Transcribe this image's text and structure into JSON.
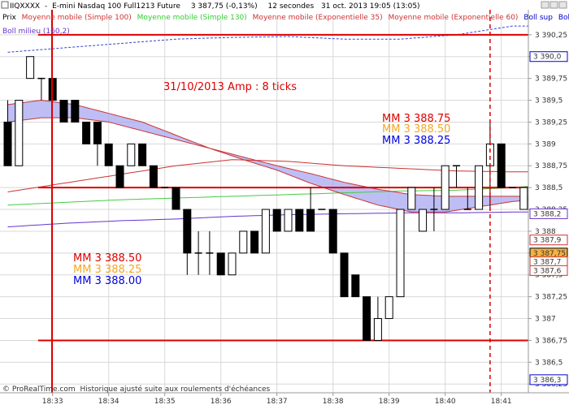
{
  "header": {
    "symbol": "IIQXXXX",
    "title": "E-mini Nasdaq 100 Full1213 Future",
    "price_info": "3 387,75 (-0,13%)",
    "interval": "12 secondes",
    "datetime": "31 oct. 2013 19:05 (13:05)"
  },
  "legend": {
    "items": [
      {
        "label": "Prix",
        "color": "#000000"
      },
      {
        "label": "Moyenne mobile (Simple 100)",
        "color": "#cc3333"
      },
      {
        "label": "Moyenne mobile (Simple 130)",
        "color": "#33cc33"
      },
      {
        "label": "Moyenne mobile (Exponentielle 35)",
        "color": "#cc3333"
      },
      {
        "label": "Moyenne mobile (Exponentielle 60)",
        "color": "#cc3333"
      },
      {
        "label": "Boll sup",
        "color": "#0000cc"
      },
      {
        "label": "Boll inf",
        "color": "#0000cc"
      }
    ],
    "line2": {
      "label": "Boll milieu (160,2)",
      "color": "#6633cc"
    }
  },
  "annotations": {
    "date_amp": "31/10/2013  Amp : 8 ticks",
    "right_mm": [
      "MM 3 388.75",
      "MM 3 388.50",
      "MM 3 388.25"
    ],
    "left_mm": [
      "MM 3 388.50",
      "MM 3 388.25",
      "MM 3 388.00"
    ],
    "mm_colors": [
      "#dd0000",
      "#f5a623",
      "#0000dd"
    ]
  },
  "footer": {
    "copyright": "© ProRealTime.com",
    "note": "Historique ajusté suite aux roulements d'échéances"
  },
  "colors": {
    "candle_up": "#ffffff",
    "candle_down": "#000000",
    "band_fill": "#a8a8f0",
    "red_line": "#dd0000",
    "grid": "#d8d8d8"
  },
  "chart_data": {
    "type": "candlestick",
    "y_ticks": [
      "3 390,25",
      "3 390",
      "3 389,75",
      "3 389,5",
      "3 389,25",
      "3 389",
      "3 388,75",
      "3 388,5",
      "3 388,25",
      "3 388",
      "3 387,75",
      "3 387,5",
      "3 387,25",
      "3 387",
      "3 386,75",
      "3 386,5",
      "3 386,25"
    ],
    "x_ticks": [
      "18:33",
      "18:34",
      "18:35",
      "18:36",
      "18:37",
      "18:38",
      "18:39",
      "18:40",
      "18:41"
    ],
    "ylim": [
      3386.15,
      3390.5
    ],
    "price_labels": [
      {
        "text": "3 390,0",
        "value": 3390.0,
        "color": "#0000cc",
        "bg": "#ffffff"
      },
      {
        "text": "3 388,2",
        "value": 3388.2,
        "color": "#6633cc",
        "bg": "#ffffff"
      },
      {
        "text": "3 387,9",
        "value": 3387.9,
        "color": "#cc3333",
        "bg": "#ffffff"
      },
      {
        "text": "3 387,75",
        "value": 3387.75,
        "color": "#000000",
        "bg": "#f5b041"
      },
      {
        "text": "3 387,7",
        "value": 3387.65,
        "color": "#cc3333",
        "bg": "#ffffff"
      },
      {
        "text": "3 387,6",
        "value": 3387.55,
        "color": "#cc3333",
        "bg": "#ffffff"
      },
      {
        "text": "3 386,3",
        "value": 3386.3,
        "color": "#0000cc",
        "bg": "#ffffff"
      }
    ],
    "hlines": [
      {
        "value": 3390.25,
        "from": 3,
        "to": 47
      },
      {
        "value": 3388.5,
        "from": 3,
        "to": 47
      },
      {
        "value": 3386.75,
        "from": 3,
        "to": 47
      }
    ],
    "vlines": [
      {
        "index": 1,
        "style": "solid"
      },
      {
        "index": 43,
        "style": "dashed"
      }
    ],
    "candles": [
      [
        3389.25,
        3389.5,
        3388.75,
        3388.75
      ],
      [
        3388.75,
        3389.5,
        3388.75,
        3389.5
      ],
      [
        3389.75,
        3390.0,
        3389.75,
        3390.0
      ],
      [
        3389.75,
        3389.75,
        3389.5,
        3389.75
      ],
      [
        3389.75,
        3389.75,
        3389.5,
        3389.5
      ],
      [
        3389.5,
        3389.5,
        3389.25,
        3389.25
      ],
      [
        3389.5,
        3389.5,
        3389.25,
        3389.25
      ],
      [
        3389.25,
        3389.25,
        3389.0,
        3389.0
      ],
      [
        3389.25,
        3389.25,
        3388.75,
        3389.0
      ],
      [
        3389.0,
        3389.0,
        3388.75,
        3388.75
      ],
      [
        3388.75,
        3388.75,
        3388.5,
        3388.5
      ],
      [
        3388.75,
        3389.0,
        3388.75,
        3389.0
      ],
      [
        3389.0,
        3389.0,
        3388.75,
        3388.75
      ],
      [
        3388.75,
        3388.75,
        3388.5,
        3388.5
      ],
      [
        3388.5,
        3388.5,
        3388.5,
        3388.5
      ],
      [
        3388.5,
        3388.5,
        3388.25,
        3388.25
      ],
      [
        3388.25,
        3388.25,
        3387.5,
        3387.75
      ],
      [
        3387.75,
        3388.0,
        3387.5,
        3387.75
      ],
      [
        3387.75,
        3388.0,
        3387.5,
        3387.75
      ],
      [
        3387.75,
        3387.75,
        3387.5,
        3387.5
      ],
      [
        3387.5,
        3387.75,
        3387.5,
        3387.75
      ],
      [
        3387.75,
        3388.0,
        3387.75,
        3388.0
      ],
      [
        3388.0,
        3388.0,
        3387.75,
        3387.75
      ],
      [
        3387.75,
        3388.25,
        3387.75,
        3388.25
      ],
      [
        3388.25,
        3388.25,
        3388.0,
        3388.0
      ],
      [
        3388.0,
        3388.25,
        3388.0,
        3388.25
      ],
      [
        3388.25,
        3388.25,
        3388.0,
        3388.0
      ],
      [
        3388.25,
        3388.5,
        3388.0,
        3388.0
      ],
      [
        3388.25,
        3388.25,
        3388.25,
        3388.25
      ],
      [
        3388.25,
        3388.25,
        3387.75,
        3387.75
      ],
      [
        3387.75,
        3387.75,
        3387.25,
        3387.25
      ],
      [
        3387.5,
        3387.5,
        3387.25,
        3387.25
      ],
      [
        3387.25,
        3387.25,
        3386.75,
        3386.75
      ],
      [
        3386.75,
        3387.25,
        3386.75,
        3387.0
      ],
      [
        3387.0,
        3387.25,
        3387.0,
        3387.25
      ],
      [
        3387.25,
        3388.25,
        3387.25,
        3388.25
      ],
      [
        3388.25,
        3388.5,
        3388.25,
        3388.5
      ],
      [
        3388.0,
        3388.25,
        3388.0,
        3388.25
      ],
      [
        3388.25,
        3388.5,
        3388.0,
        3388.25
      ],
      [
        3388.25,
        3388.75,
        3388.25,
        3388.75
      ],
      [
        3388.75,
        3388.75,
        3388.5,
        3388.75
      ],
      [
        3388.25,
        3388.5,
        3388.25,
        3388.25
      ],
      [
        3388.25,
        3388.75,
        3388.25,
        3388.75
      ],
      [
        3388.75,
        3389.25,
        3388.25,
        3389.0
      ],
      [
        3389.0,
        3389.0,
        3388.5,
        3388.5
      ],
      [
        3388.5,
        3388.5,
        3388.5,
        3388.5
      ],
      [
        3388.25,
        3388.5,
        3388.25,
        3388.5
      ],
      [
        3388.5,
        3388.5,
        3388.25,
        3388.25
      ]
    ],
    "series": [
      {
        "name": "Boll sup",
        "color": "#3344cc",
        "dashed": true,
        "x": [
          0,
          5,
          10,
          15,
          20,
          25,
          30,
          35,
          40,
          45,
          47
        ],
        "values": [
          3390.05,
          3390.1,
          3390.15,
          3390.2,
          3390.22,
          3390.23,
          3390.2,
          3390.2,
          3390.25,
          3390.35,
          3390.35
        ]
      },
      {
        "name": "Boll milieu",
        "color": "#6633cc",
        "x": [
          0,
          5,
          10,
          15,
          20,
          25,
          30,
          35,
          40,
          45,
          47
        ],
        "values": [
          3388.05,
          3388.09,
          3388.12,
          3388.14,
          3388.17,
          3388.19,
          3388.2,
          3388.21,
          3388.21,
          3388.22,
          3388.22
        ]
      },
      {
        "name": "Moyenne mobile (Simple 130)",
        "color": "#44cc44",
        "x": [
          0,
          5,
          10,
          15,
          20,
          25,
          30,
          35,
          40,
          45,
          47
        ],
        "values": [
          3388.3,
          3388.33,
          3388.36,
          3388.38,
          3388.4,
          3388.42,
          3388.44,
          3388.46,
          3388.47,
          3388.5,
          3388.52
        ]
      },
      {
        "name": "Moyenne mobile (Simple 100)",
        "color": "#cc3333",
        "x": [
          0,
          5,
          10,
          15,
          20,
          25,
          30,
          35,
          40,
          45,
          47
        ],
        "values": [
          3388.45,
          3388.55,
          3388.65,
          3388.75,
          3388.82,
          3388.8,
          3388.75,
          3388.72,
          3388.69,
          3388.68,
          3388.68
        ]
      },
      {
        "name": "Moyenne mobile (Exponentielle 35)",
        "color": "#cc3333",
        "x": [
          0,
          3,
          6,
          9,
          12,
          15,
          18,
          21,
          24,
          27,
          30,
          33,
          36,
          39,
          42,
          45,
          47
        ],
        "values": [
          3389.45,
          3389.5,
          3389.45,
          3389.35,
          3389.25,
          3389.1,
          3388.95,
          3388.82,
          3388.7,
          3388.55,
          3388.42,
          3388.3,
          3388.22,
          3388.22,
          3388.28,
          3388.34,
          3388.36
        ]
      },
      {
        "name": "Moyenne mobile (Exponentielle 60)",
        "color": "#cc3333",
        "x": [
          0,
          3,
          6,
          9,
          12,
          15,
          18,
          21,
          24,
          27,
          30,
          33,
          36,
          39,
          42,
          45,
          47
        ],
        "values": [
          3389.25,
          3389.3,
          3389.3,
          3389.25,
          3389.15,
          3389.05,
          3388.95,
          3388.85,
          3388.75,
          3388.66,
          3388.56,
          3388.48,
          3388.42,
          3388.4,
          3388.4,
          3388.4,
          3388.4
        ]
      }
    ]
  }
}
